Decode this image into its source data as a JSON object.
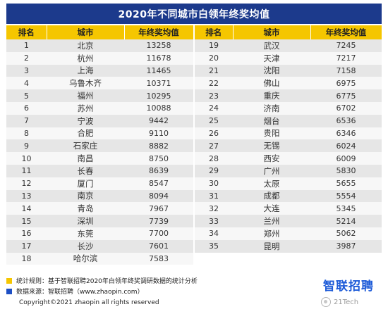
{
  "title": "2020年不同城市白领年终奖均值",
  "headers": {
    "rank": "排名",
    "city": "城市",
    "bonus": "年终奖均值"
  },
  "chart_data": {
    "type": "table",
    "title": "2020年不同城市白领年终奖均值",
    "columns": [
      "排名",
      "城市",
      "年终奖均值"
    ],
    "left_rows": [
      [
        "1",
        "北京",
        "13258"
      ],
      [
        "2",
        "杭州",
        "11678"
      ],
      [
        "3",
        "上海",
        "11465"
      ],
      [
        "4",
        "乌鲁木齐",
        "10371"
      ],
      [
        "5",
        "福州",
        "10295"
      ],
      [
        "6",
        "苏州",
        "10088"
      ],
      [
        "7",
        "宁波",
        "9442"
      ],
      [
        "8",
        "合肥",
        "9110"
      ],
      [
        "9",
        "石家庄",
        "8882"
      ],
      [
        "10",
        "南昌",
        "8750"
      ],
      [
        "11",
        "长春",
        "8639"
      ],
      [
        "12",
        "厦门",
        "8547"
      ],
      [
        "13",
        "南京",
        "8094"
      ],
      [
        "14",
        "青岛",
        "7967"
      ],
      [
        "15",
        "深圳",
        "7739"
      ],
      [
        "16",
        "东莞",
        "7700"
      ],
      [
        "17",
        "长沙",
        "7601"
      ],
      [
        "18",
        "哈尔滨",
        "7583"
      ]
    ],
    "right_rows": [
      [
        "19",
        "武汉",
        "7245"
      ],
      [
        "20",
        "天津",
        "7217"
      ],
      [
        "21",
        "沈阳",
        "7158"
      ],
      [
        "22",
        "佛山",
        "6975"
      ],
      [
        "23",
        "重庆",
        "6775"
      ],
      [
        "24",
        "济南",
        "6702"
      ],
      [
        "25",
        "烟台",
        "6536"
      ],
      [
        "26",
        "贵阳",
        "6346"
      ],
      [
        "27",
        "无锡",
        "6024"
      ],
      [
        "28",
        "西安",
        "6009"
      ],
      [
        "29",
        "广州",
        "5830"
      ],
      [
        "30",
        "太原",
        "5655"
      ],
      [
        "31",
        "成都",
        "5554"
      ],
      [
        "32",
        "大连",
        "5345"
      ],
      [
        "33",
        "兰州",
        "5214"
      ],
      [
        "34",
        "郑州",
        "5062"
      ],
      [
        "35",
        "昆明",
        "3987"
      ]
    ]
  },
  "notes": {
    "stat_rule": "统计规则：基于智联招聘2020年白领年终奖调研数据的统计分析",
    "source": "数据来源：智联招聘（www.zhaopin.com）"
  },
  "copyright": "Copyright©2021 zhaopin all rights reserved",
  "logo_text": "智联招聘",
  "watermark": "21Tech",
  "colors": {
    "title_bg": "#1c3a8c",
    "header_bg": "#f5c600",
    "row_odd": "#e6e6e6",
    "row_even": "#f7f7f7",
    "note_yellow": "#f5c600",
    "note_blue": "#1d4fc4",
    "logo_blue": "#1d5bd8"
  }
}
